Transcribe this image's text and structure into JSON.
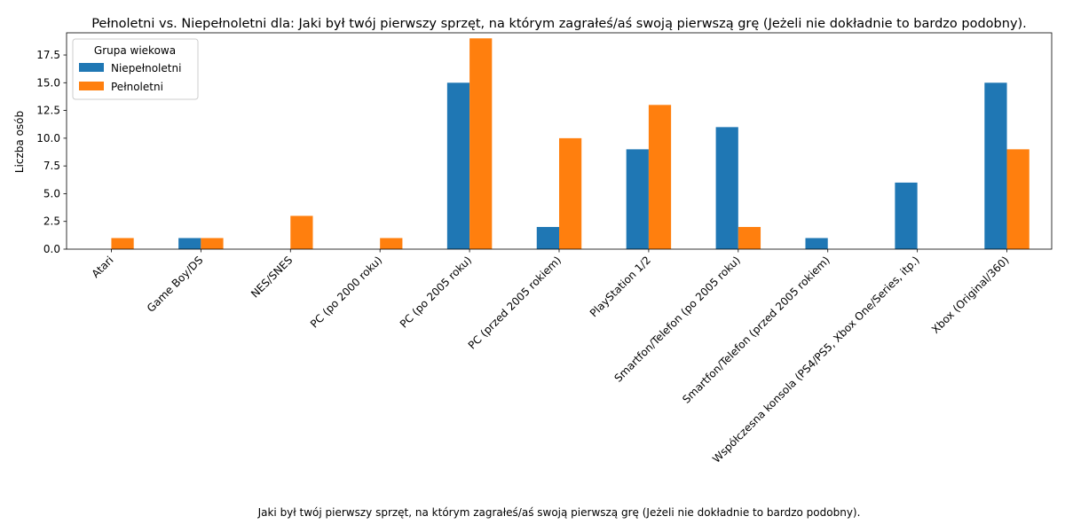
{
  "chart_data": {
    "type": "bar",
    "title": "Pełnoletni vs. Niepełnoletni dla: Jaki był twój pierwszy sprzęt, na którym zagrałeś/aś swoją pierwszą grę (Jeżeli nie dokładnie to bardzo podobny).",
    "xlabel": "Jaki był twój pierwszy sprzęt, na którym zagrałeś/aś swoją pierwszą grę (Jeżeli nie dokładnie to bardzo podobny).",
    "ylabel": "Liczba osób",
    "ylim": [
      0,
      19.5
    ],
    "yticks": [
      0.0,
      2.5,
      5.0,
      7.5,
      10.0,
      12.5,
      15.0,
      17.5
    ],
    "ytick_labels": [
      "0.0",
      "2.5",
      "5.0",
      "7.5",
      "10.0",
      "12.5",
      "15.0",
      "17.5"
    ],
    "grid": false,
    "legend": {
      "title": "Grupa wiekowa",
      "placement": "top-left"
    },
    "categories": [
      "Atari",
      "Game Boy/DS",
      "NES/SNES",
      "PC (po 2000 roku)",
      "PC (po 2005 roku)",
      "PC (przed 2005 rokiem)",
      "PlayStation 1/2",
      "Smartfon/Telefon (po 2005 roku)",
      "Smartfon/Telefon (przed 2005 rokiem)",
      "Współczesna konsola (PS4/PS5, Xbox One/Series, itp.)",
      "Xbox (Original/360)"
    ],
    "series": [
      {
        "name": "Niepełnoletni",
        "color": "#1f77b4",
        "values": [
          0,
          1,
          0,
          0,
          15,
          2,
          9,
          11,
          1,
          6,
          15
        ]
      },
      {
        "name": "Pełnoletni",
        "color": "#ff7f0e",
        "values": [
          1,
          1,
          3,
          1,
          19,
          10,
          13,
          2,
          0,
          0,
          9
        ]
      }
    ]
  }
}
